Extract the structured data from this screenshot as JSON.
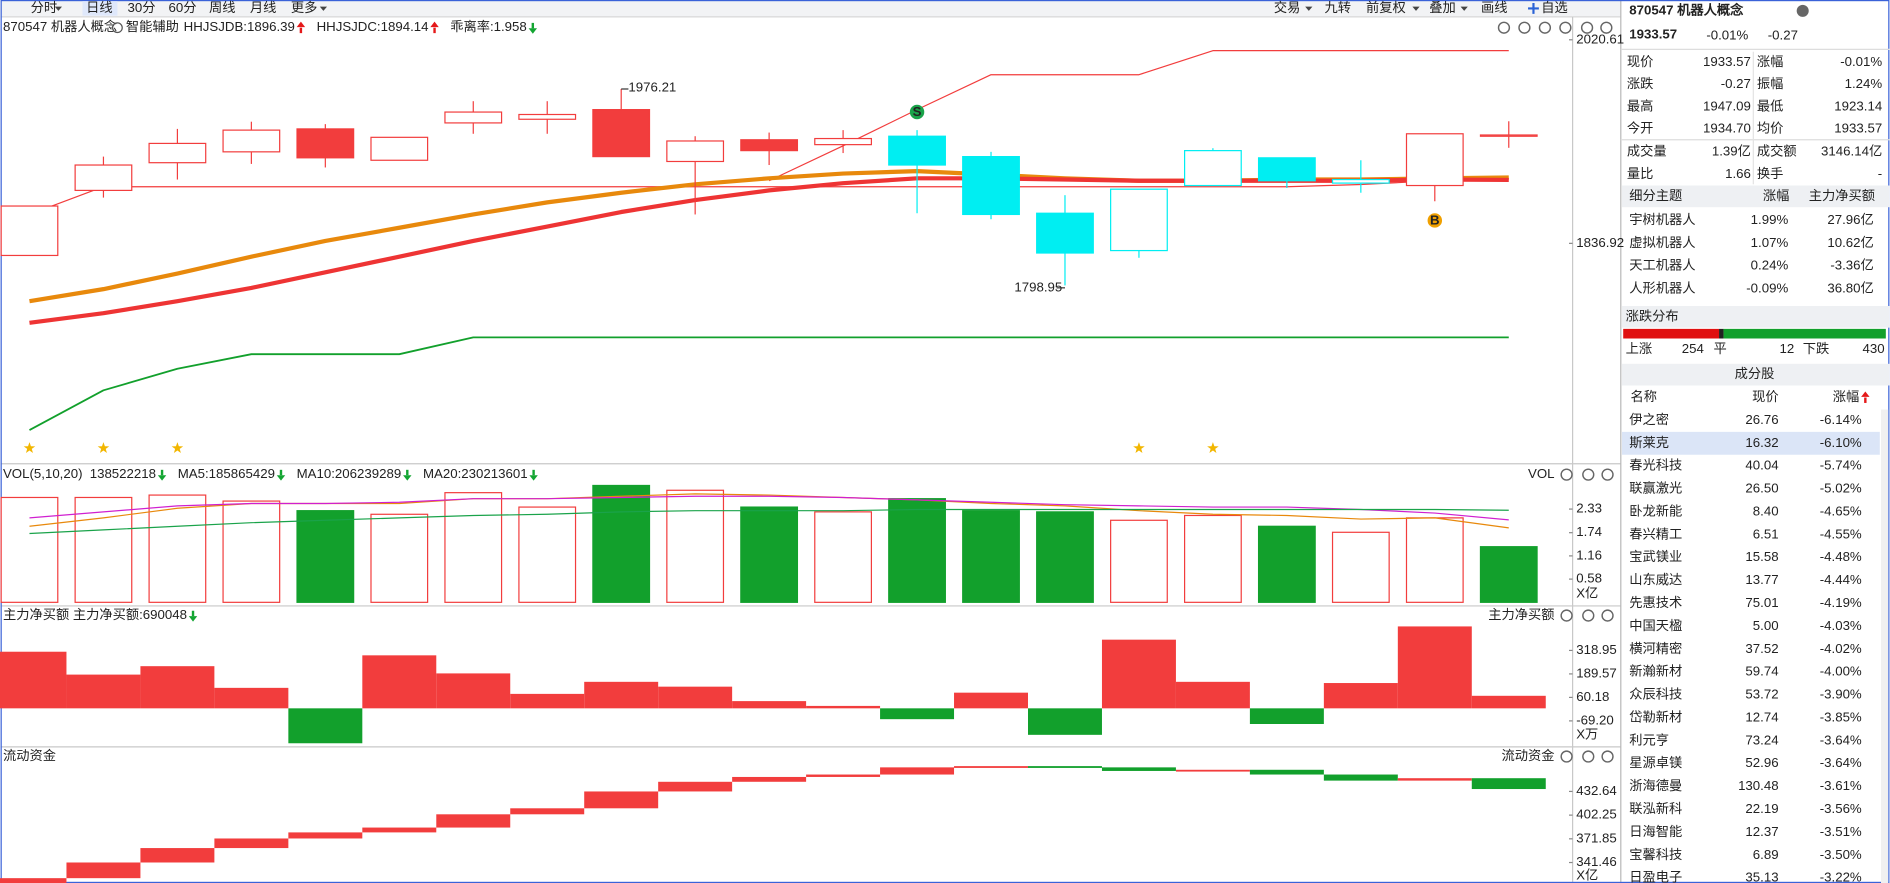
{
  "palette": {
    "up": "#f23d3d",
    "down": "#12a02c",
    "green_text": "#13a532",
    "red_text": "#e5191a"
  },
  "toolbar": {
    "left": [
      "分时",
      "日线",
      "30分",
      "60分",
      "周线",
      "月线",
      "更多"
    ],
    "active": 1,
    "right": [
      "交易",
      "九转",
      "前复权",
      "叠加",
      "画线",
      "自选"
    ]
  },
  "main": {
    "title": "870547 机器人概念",
    "assist": "智能辅助",
    "indicators": [
      {
        "label": "HHJSJDB:1896.39",
        "color": "#e8890c",
        "dir": "up"
      },
      {
        "label": "HHJSJDC:1894.14",
        "color": "#e83b3b",
        "dir": "up"
      },
      {
        "label": "乖离率:1.958",
        "color": "#e8890c",
        "dir": "down"
      }
    ],
    "ylim": [
      1638.0,
      2041.3
    ],
    "yticks": [
      2020.61,
      1836.92
    ],
    "candles": {
      "open": [
        1826.0,
        1884.7,
        1909.7,
        1919.5,
        1914.1,
        1911.9,
        1945.6,
        1948.9,
        1915.2,
        1910.8,
        1920.6,
        1926.0,
        1933.6,
        1915.2,
        1864.1,
        1830.4,
        1889.1,
        1914.1,
        1891.3,
        1889.1,
        1934.7
      ],
      "high": [
        1870.6,
        1915.2,
        1940.2,
        1946.7,
        1944.5,
        1932.6,
        1965.2,
        1965.2,
        1976.21,
        1933.6,
        1936.9,
        1939.1,
        1939.1,
        1919.5,
        1880.4,
        1885.8,
        1922.8,
        1914.1,
        1911.9,
        1935.8,
        1947.09
      ],
      "low": [
        1826.0,
        1878.2,
        1894.5,
        1908.6,
        1905.4,
        1911.9,
        1935.8,
        1935.8,
        1915.2,
        1863.0,
        1907.6,
        1918.4,
        1864.1,
        1858.7,
        1798.95,
        1823.9,
        1889.1,
        1886.9,
        1882.6,
        1874.9,
        1923.14
      ],
      "close": [
        1870.6,
        1907.6,
        1927.1,
        1939.1,
        1940.2,
        1932.6,
        1955.4,
        1953.2,
        1957.6,
        1929.3,
        1930.4,
        1931.5,
        1907.6,
        1863.0,
        1828.2,
        1885.8,
        1920.6,
        1893.4,
        1894.5,
        1935.8,
        1933.57
      ],
      "color": [
        "#f23d3d",
        "#f23d3d",
        "#f23d3d",
        "#f23d3d",
        "#f23d3d",
        "#f23d3d",
        "#f23d3d",
        "#f23d3d",
        "#f23d3d",
        "#f23d3d",
        "#f23d3d",
        "#f23d3d",
        "#00eef2",
        "#00eef2",
        "#00eef2",
        "#00eef2",
        "#00eef2",
        "#00eef2",
        "#00eef2",
        "#f23d3d",
        "#f23d3d"
      ],
      "filled": [
        false,
        false,
        false,
        false,
        true,
        false,
        false,
        false,
        true,
        false,
        true,
        false,
        true,
        true,
        true,
        false,
        false,
        true,
        false,
        false,
        false
      ]
    },
    "lines": [
      {
        "color": "#f23d3d",
        "width": 1,
        "values": [
          null,
          null,
          null,
          null,
          null,
          null,
          null,
          null,
          null,
          null,
          1893.4,
          1924.9,
          1957.6,
          1989.1,
          1989.1,
          1989.1,
          2010.8,
          2010.8,
          2010.8,
          2010.8,
          2010.8
        ]
      },
      {
        "color": "#f23d3d",
        "width": 1,
        "values": [
          1863.0,
          1888.0,
          1888.0,
          1888.0,
          1888.0,
          1888.0,
          1888.0,
          1888.0,
          1888.0,
          1888.0,
          1888.0,
          1888.0,
          1888.0,
          1888.0,
          1888.0,
          1888.0,
          1888.0,
          1888.0,
          1890.0,
          1893.4,
          1895.0
        ]
      },
      {
        "color": "#12a02c",
        "width": 1.5,
        "values": [
          1668.4,
          1704.3,
          1723.8,
          1736.9,
          1736.9,
          1736.9,
          1752.1,
          1752.1,
          1752.1,
          1752.1,
          1752.1,
          1752.1,
          1752.1,
          1752.1,
          1752.1,
          1752.1,
          1752.1,
          1752.1,
          1752.1,
          1752.1,
          1752.1
        ]
      },
      {
        "color": "#e8890c",
        "width": 3.5,
        "values": [
          1784.7,
          1795.6,
          1809.7,
          1824.9,
          1839.1,
          1851.0,
          1863.0,
          1873.9,
          1882.6,
          1890.2,
          1895.6,
          1899.9,
          1902.1,
          1898.9,
          1895.6,
          1893.4,
          1893.4,
          1894.5,
          1894.5,
          1895.6,
          1896.39
        ]
      },
      {
        "color": "#ee3434",
        "width": 3.5,
        "values": [
          1765.2,
          1773.9,
          1784.7,
          1796.7,
          1810.8,
          1824.9,
          1839.1,
          1852.1,
          1865.2,
          1876.0,
          1884.7,
          1891.2,
          1895.6,
          1895.6,
          1894.5,
          1893.4,
          1893.4,
          1893.4,
          1893.4,
          1894.5,
          1894.14
        ]
      }
    ],
    "signals": [
      {
        "label": "S",
        "color": "#1aa34a"
      },
      {
        "label": "B",
        "color": "#f0a000"
      }
    ]
  },
  "volume": {
    "title": "VOL(5,10,20)",
    "side_title": "VOL",
    "unit": "X亿",
    "legend": [
      {
        "label": "138522218",
        "color": "#333333",
        "dir": "down"
      },
      {
        "label": "MA5:185865429",
        "color": "#e8890c",
        "dir": "down"
      },
      {
        "label": "MA10:206239289",
        "color": "#d020d0",
        "dir": "down"
      },
      {
        "label": "MA20:230213601",
        "color": "#1aa34a",
        "dir": "down"
      }
    ],
    "ylim": [
      0,
      2.95
    ],
    "yticks": [
      0.58,
      1.16,
      1.74,
      2.33
    ],
    "values": [
      2.62,
      2.62,
      2.68,
      2.53,
      2.29,
      2.2,
      2.74,
      2.38,
      2.92,
      2.8,
      2.38,
      2.26,
      2.59,
      2.29,
      2.26,
      2.05,
      2.17,
      1.9,
      1.75,
      2.11,
      1.39
    ],
    "filled": [
      false,
      false,
      false,
      false,
      true,
      false,
      false,
      false,
      true,
      false,
      true,
      false,
      true,
      true,
      true,
      false,
      false,
      true,
      false,
      false,
      true
    ],
    "lines": [
      {
        "color": "#e8890c",
        "values": [
          1.9,
          2.11,
          2.35,
          2.47,
          2.47,
          2.47,
          2.59,
          2.59,
          2.65,
          2.71,
          2.68,
          2.62,
          2.56,
          2.47,
          2.41,
          2.29,
          2.2,
          2.17,
          2.08,
          2.11,
          1.86
        ]
      },
      {
        "color": "#d020d0",
        "values": [
          2.11,
          2.26,
          2.41,
          2.47,
          2.47,
          2.5,
          2.59,
          2.59,
          2.62,
          2.65,
          2.65,
          2.62,
          2.56,
          2.5,
          2.44,
          2.41,
          2.38,
          2.38,
          2.32,
          2.23,
          2.06
        ]
      },
      {
        "color": "#1aa34a",
        "values": [
          1.72,
          1.81,
          1.9,
          1.99,
          2.05,
          2.11,
          2.17,
          2.2,
          2.26,
          2.29,
          2.29,
          2.29,
          2.32,
          2.32,
          2.32,
          2.32,
          2.32,
          2.32,
          2.32,
          2.32,
          2.3
        ]
      }
    ]
  },
  "net_buy": {
    "title": "主力净买额",
    "side_title": "主力净买额",
    "unit": "X万",
    "legend": [
      {
        "label": "主力净买额:690048",
        "color": "#e83b3b",
        "dir": "down"
      }
    ],
    "ylim": [
      -212.3,
      464.5
    ],
    "yticks": [
      {
        "value": -69.2,
        "label": "-69.20"
      },
      60.18,
      189.57,
      318.95
    ],
    "values": [
      311.8,
      185.8,
      232.2,
      112.8,
      -192.4,
      291.9,
      192.4,
      79.6,
      146.0,
      119.4,
      39.8,
      13.3,
      -59.7,
      86.3,
      -146.0,
      378.2,
      146.0,
      -86.3,
      139.3,
      451.2,
      69.0
    ]
  },
  "liquidity": {
    "title": "流动资金",
    "side_title": "流动资金",
    "unit": "X亿",
    "ylim": [
      315.2,
      466.6
    ],
    "yticks": [
      341.46,
      371.85,
      402.25,
      432.64
    ],
    "open": [
      315.2,
      321.4,
      341.5,
      360.0,
      372.3,
      380.1,
      386.3,
      403.3,
      411.0,
      432.6,
      445.0,
      451.2,
      454.3,
      463.5,
      465.1,
      463.5,
      458.9,
      460.4,
      454.3,
      446.5,
      449.6
    ],
    "close": [
      321.4,
      341.5,
      360.0,
      372.3,
      380.1,
      386.3,
      403.3,
      411.0,
      432.6,
      445.0,
      451.2,
      454.3,
      463.5,
      465.1,
      463.5,
      458.9,
      460.4,
      454.3,
      446.5,
      449.6,
      435.7
    ]
  },
  "quote": {
    "title": "870547 机器人概念",
    "price": "1933.57",
    "change_pct": "-0.01%",
    "change": "-0.27",
    "color": "#13a532",
    "fields": [
      [
        {
          "label": "现价",
          "value": "1933.57",
          "color": "#13a532"
        },
        {
          "label": "涨幅",
          "value": "-0.01%",
          "color": "#13a532"
        }
      ],
      [
        {
          "label": "涨跌",
          "value": "-0.27",
          "color": "#13a532"
        },
        {
          "label": "振幅",
          "value": "1.24%",
          "color": "#222222"
        }
      ],
      [
        {
          "label": "最高",
          "value": "1947.09",
          "color": "#e5191a"
        },
        {
          "label": "最低",
          "value": "1923.14",
          "color": "#13a532"
        }
      ],
      [
        {
          "label": "今开",
          "value": "1934.70",
          "color": "#e5191a"
        },
        {
          "label": "均价",
          "value": "1933.57",
          "color": "#13a532"
        }
      ],
      [
        {
          "label": "成交量",
          "value": "1.39亿",
          "color": "#222222"
        },
        {
          "label": "成交额",
          "value": "3146.14亿",
          "color": "#222222"
        }
      ],
      [
        {
          "label": "量比",
          "value": "1.66",
          "color": "#222222"
        },
        {
          "label": "换手",
          "value": "-",
          "color": "#222222"
        }
      ]
    ]
  },
  "themes": {
    "header": [
      "细分主题",
      "涨幅",
      "主力净买额"
    ],
    "rows": [
      {
        "name": "宇树机器人",
        "pct": "1.99%",
        "pct_color": "#e5191a",
        "net": "27.96亿",
        "net_color": "#e5191a"
      },
      {
        "name": "虚拟机器人",
        "pct": "1.07%",
        "pct_color": "#e5191a",
        "net": "10.62亿",
        "net_color": "#e5191a"
      },
      {
        "name": "天工机器人",
        "pct": "0.24%",
        "pct_color": "#e5191a",
        "net": "-3.36亿",
        "net_color": "#13a532"
      },
      {
        "name": "人形机器人",
        "pct": "-0.09%",
        "pct_color": "#13a532",
        "net": "36.80亿",
        "net_color": "#e5191a"
      }
    ]
  },
  "distribution": {
    "title": "涨跌分布",
    "up_label": "上涨",
    "up": 254,
    "flat_label": "平",
    "flat": 12,
    "down_label": "下跌",
    "down": 430
  },
  "constituents": {
    "title": "成分股",
    "header": [
      "名称",
      "现价",
      "涨幅"
    ],
    "selected": 1,
    "color": "#13a532",
    "rows": [
      [
        "伊之密",
        "26.76",
        "-6.14%"
      ],
      [
        "斯莱克",
        "16.32",
        "-6.10%"
      ],
      [
        "春光科技",
        "40.04",
        "-5.74%"
      ],
      [
        "联赢激光",
        "26.50",
        "-5.02%"
      ],
      [
        "卧龙新能",
        "8.40",
        "-4.65%"
      ],
      [
        "春兴精工",
        "6.51",
        "-4.55%"
      ],
      [
        "宝武镁业",
        "15.58",
        "-4.48%"
      ],
      [
        "山东威达",
        "13.77",
        "-4.44%"
      ],
      [
        "先惠技术",
        "75.01",
        "-4.19%"
      ],
      [
        "中国天楹",
        "5.00",
        "-4.03%"
      ],
      [
        "横河精密",
        "37.52",
        "-4.02%"
      ],
      [
        "新瀚新材",
        "59.74",
        "-4.00%"
      ],
      [
        "众辰科技",
        "53.72",
        "-3.90%"
      ],
      [
        "岱勒新材",
        "12.74",
        "-3.85%"
      ],
      [
        "利元亨",
        "73.24",
        "-3.64%"
      ],
      [
        "星源卓镁",
        "52.96",
        "-3.64%"
      ],
      [
        "浙海德曼",
        "130.48",
        "-3.61%"
      ],
      [
        "联泓新科",
        "22.19",
        "-3.56%"
      ],
      [
        "日海智能",
        "12.37",
        "-3.51%"
      ],
      [
        "宝馨科技",
        "6.89",
        "-3.50%"
      ],
      [
        "日盈电子",
        "35.13",
        "-3.22%"
      ]
    ]
  }
}
